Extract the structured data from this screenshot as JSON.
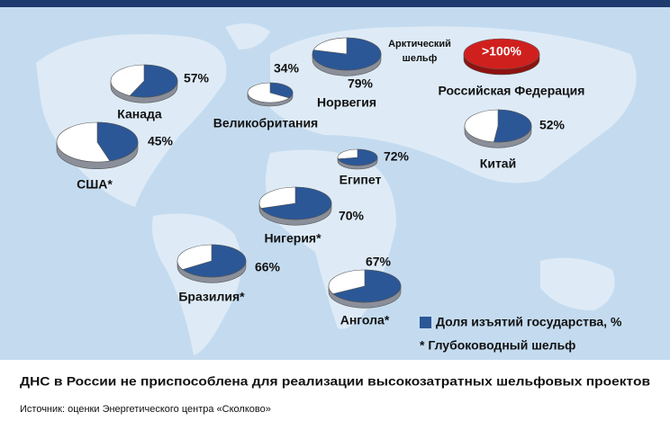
{
  "chart_data": {
    "type": "pie",
    "title": "ДНС в России не приспособлена для реализации высокозатратных шельфовых проектов",
    "source": "Источник: оценки Энергетического центра «Сколково»",
    "categories": [
      "Канада",
      "Великобритания",
      "Норвегия",
      "Российская Федерация",
      "США*",
      "Китай",
      "Египет",
      "Нигерия*",
      "Бразилия*",
      "Ангола*"
    ],
    "values": [
      57,
      34,
      79,
      100,
      45,
      52,
      72,
      70,
      66,
      67
    ],
    "value_labels": [
      "57%",
      "34%",
      "79%",
      ">100%",
      "45%",
      "52%",
      "72%",
      "70%",
      "66%",
      "67%"
    ],
    "colors": [
      "#2b5797",
      "#2b5797",
      "#2b5797",
      "#d0201e",
      "#2b5797",
      "#2b5797",
      "#2b5797",
      "#2b5797",
      "#2b5797",
      "#2b5797"
    ],
    "annotations": [
      "Арктический",
      "шельф"
    ],
    "legend": [
      "Доля изъятий государства, %",
      "* Глубоководный шельф"
    ]
  }
}
